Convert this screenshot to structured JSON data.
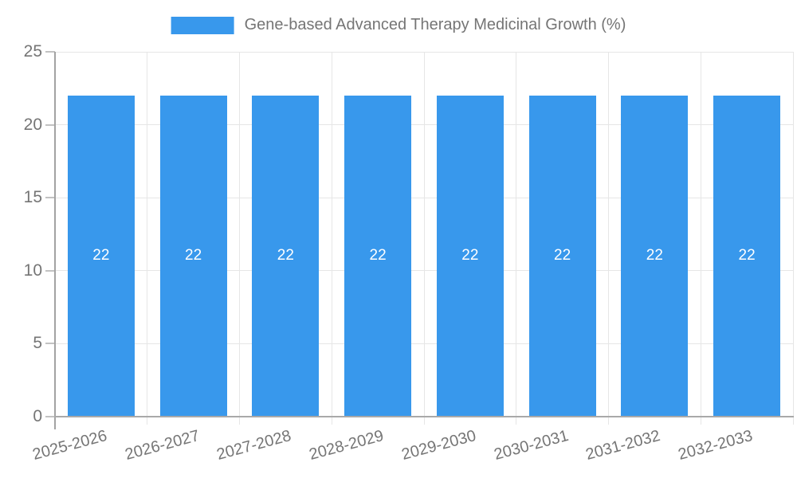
{
  "chart_data": {
    "type": "bar",
    "title": "Gene-based Advanced Therapy Medicinal Growth (%)",
    "categories": [
      "2025-2026",
      "2026-2027",
      "2027-2028",
      "2028-2029",
      "2029-2030",
      "2030-2031",
      "2031-2032",
      "2032-2033"
    ],
    "series": [
      {
        "name": "Gene-based Advanced Therapy Medicinal Growth (%)",
        "values": [
          22,
          22,
          22,
          22,
          22,
          22,
          22,
          22
        ]
      }
    ],
    "bar_labels": [
      "22",
      "22",
      "22",
      "22",
      "22",
      "22",
      "22",
      "22"
    ],
    "y_ticks": [
      0,
      5,
      10,
      15,
      20,
      25
    ],
    "ylim": [
      0,
      25
    ],
    "xlabel": "",
    "ylabel": "",
    "grid": true,
    "legend_position": "top-center",
    "colors": {
      "bar": "#3898ec",
      "bar_label_text": "#ffffff",
      "axis_text": "#757575",
      "gridline": "#e6e6e6",
      "axis_line": "#a3a3a3",
      "background": "#ffffff"
    }
  }
}
